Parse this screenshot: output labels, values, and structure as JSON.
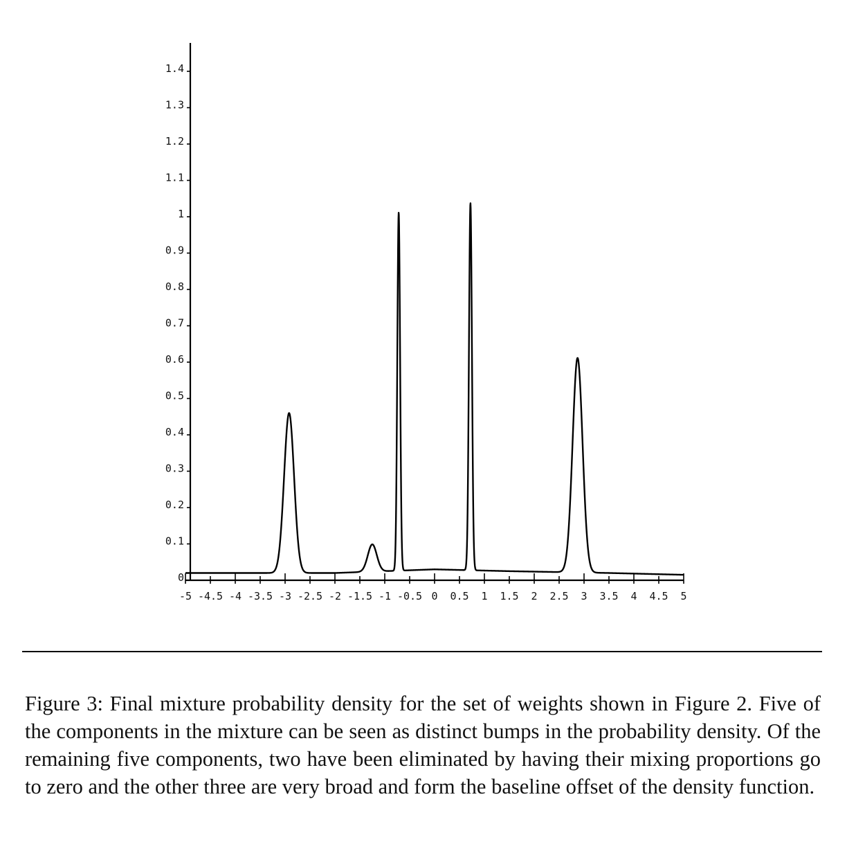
{
  "chart_data": {
    "type": "line",
    "title": "",
    "xlabel": "",
    "ylabel": "",
    "xlim": [
      -5,
      5
    ],
    "ylim": [
      0,
      1.45
    ],
    "x_ticks": [
      -5,
      -4.5,
      -4,
      -3.5,
      -3,
      -2.5,
      -2,
      -1.5,
      -1,
      -0.5,
      0,
      0.5,
      1,
      1.5,
      2,
      2.5,
      3,
      3.5,
      4,
      4.5,
      5
    ],
    "x_tick_labels": [
      "-5",
      "-4.5",
      "-4",
      "-3.5",
      "-3",
      "-2.5",
      "-2",
      "-1.5",
      "-1",
      "-0.5",
      "0",
      "0.5",
      "1",
      "1.5",
      "2",
      "2.5",
      "3",
      "3.5",
      "4",
      "4.5",
      "5"
    ],
    "y_ticks": [
      0,
      0.1,
      0.2,
      0.3,
      0.4,
      0.5,
      0.6,
      0.7,
      0.8,
      0.9,
      1,
      1.1,
      1.2,
      1.3,
      1.4
    ],
    "y_tick_labels": [
      "0",
      "0.1",
      "0.2",
      "0.3",
      "0.4",
      "0.5",
      "0.6",
      "0.7",
      "0.8",
      "0.9",
      "1",
      "1.1",
      "1.2",
      "1.3",
      "1.4"
    ],
    "grid": false,
    "legend": "none",
    "series": [
      {
        "components": [
          {
            "center": -2.92,
            "height": 0.44,
            "width": 0.1
          },
          {
            "center": -1.25,
            "height": 0.075,
            "width": 0.09
          },
          {
            "center": -0.72,
            "height": 0.985,
            "width": 0.028
          },
          {
            "center": 0.72,
            "height": 1.01,
            "width": 0.03
          },
          {
            "center": 2.87,
            "height": 0.59,
            "width": 0.1
          }
        ],
        "baseline": [
          {
            "x": -5,
            "y": 0.02
          },
          {
            "x": -2,
            "y": 0.02
          },
          {
            "x": 0,
            "y": 0.03
          },
          {
            "x": 1.5,
            "y": 0.025
          },
          {
            "x": 3.5,
            "y": 0.02
          },
          {
            "x": 5,
            "y": 0.015
          }
        ]
      }
    ]
  },
  "caption": "Figure 3: Final mixture probability density for the set of weights shown in Figure 2. Five of the components in the mixture can be seen as distinct bumps in the probability density. Of the remaining five components, two have been eliminated by having their mixing proportions go to zero and the other three are very broad and form the baseline offset of the density function."
}
